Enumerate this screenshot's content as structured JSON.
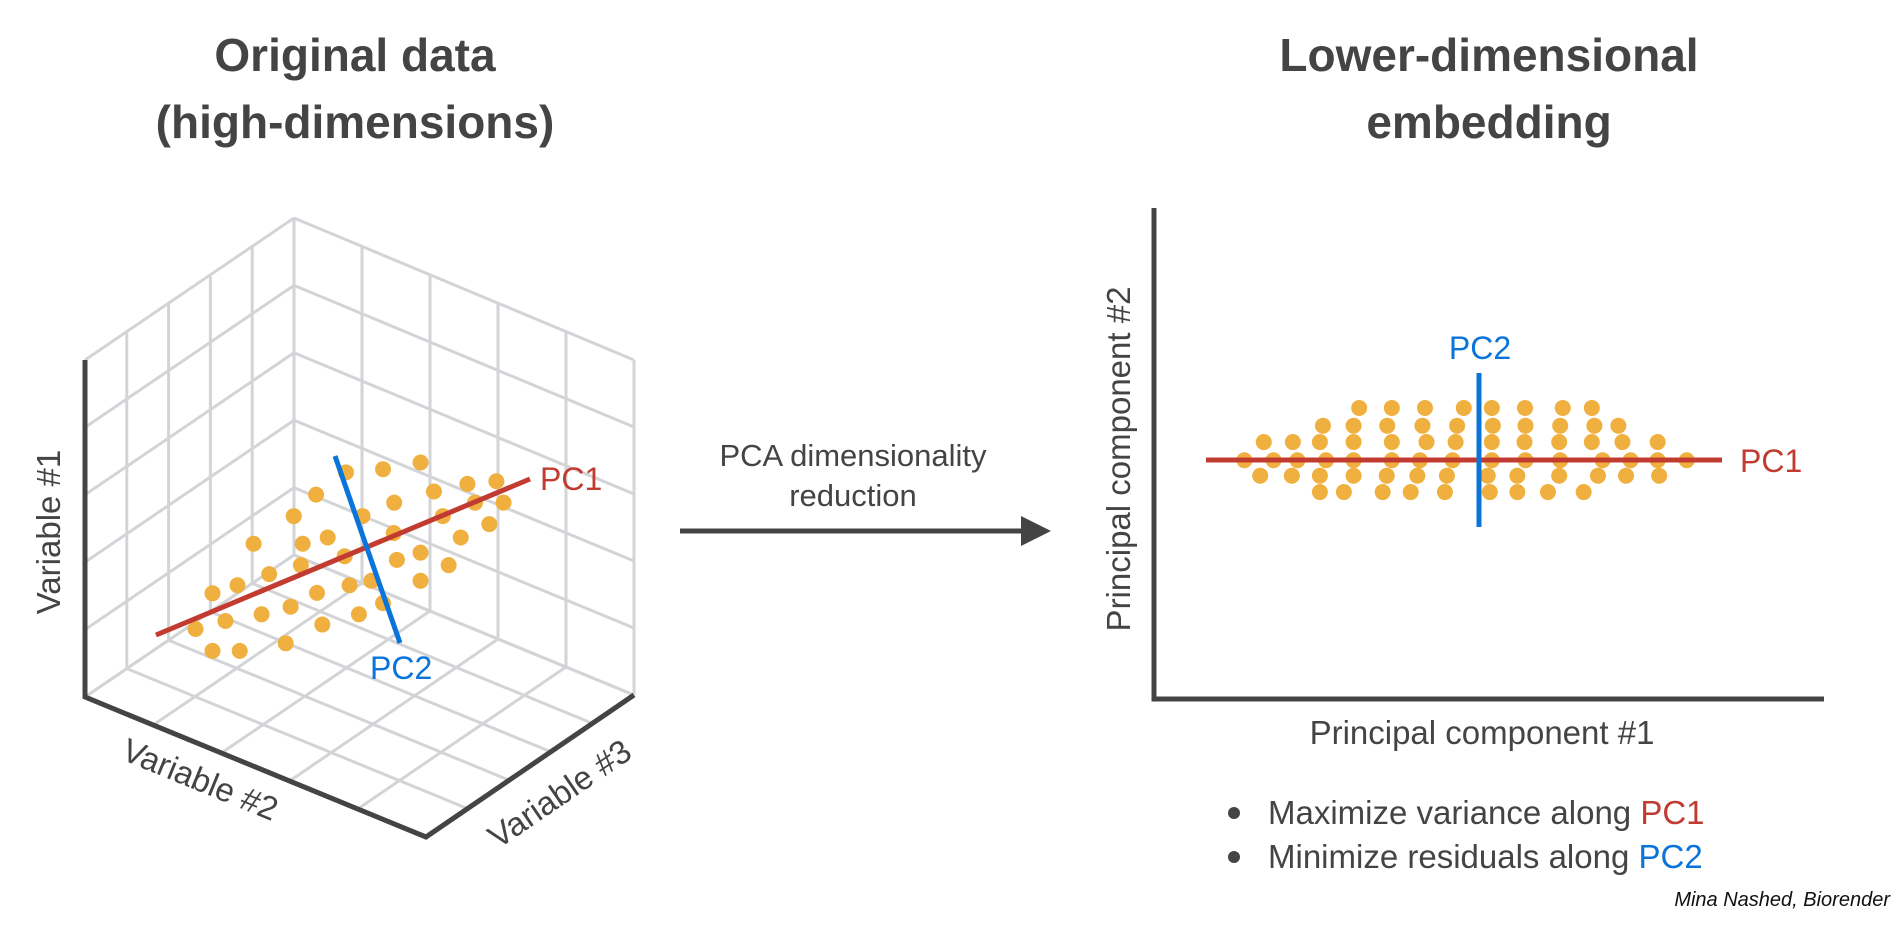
{
  "left_panel": {
    "title_lines": [
      "Original data",
      "(high-dimensions)"
    ],
    "axis_labels": {
      "variable1": "Variable #1",
      "variable2": "Variable #2",
      "variable3": "Variable #3"
    },
    "pc1_label": "PC1",
    "pc2_label": "PC2"
  },
  "middle": {
    "caption_lines": [
      "PCA dimensionality",
      "reduction"
    ]
  },
  "right_panel": {
    "title_lines": [
      "Lower-dimensional",
      "embedding"
    ],
    "x_axis_label": "Principal component #1",
    "y_axis_label": "Principal component #2",
    "pc1_label": "PC1",
    "pc2_label": "PC2",
    "bullets": [
      {
        "text": "Maximize variance along ",
        "highlight": "PC1"
      },
      {
        "text": "Minimize residuals along ",
        "highlight": "PC2"
      }
    ]
  },
  "credit": "Mina Nashed, Biorender",
  "colors": {
    "points": "#F0B03F",
    "pc1": "#C23B30",
    "pc2": "#0A74DA",
    "axis": "#444444",
    "grid": "#D3D4D7",
    "text": "#444444"
  },
  "chart_data": [
    {
      "type": "scatter",
      "title": "Original data (high-dimensions)",
      "xlabel": "Variable #2",
      "ylabel": "Variable #1",
      "zlabel": "Variable #3",
      "grid": true,
      "annotations": [
        "PC1",
        "PC2"
      ]
    },
    {
      "type": "scatter",
      "title": "Lower-dimensional embedding",
      "xlabel": "Principal component #1",
      "ylabel": "Principal component #2",
      "grid": false,
      "annotations": [
        "PC1",
        "PC2"
      ]
    }
  ]
}
